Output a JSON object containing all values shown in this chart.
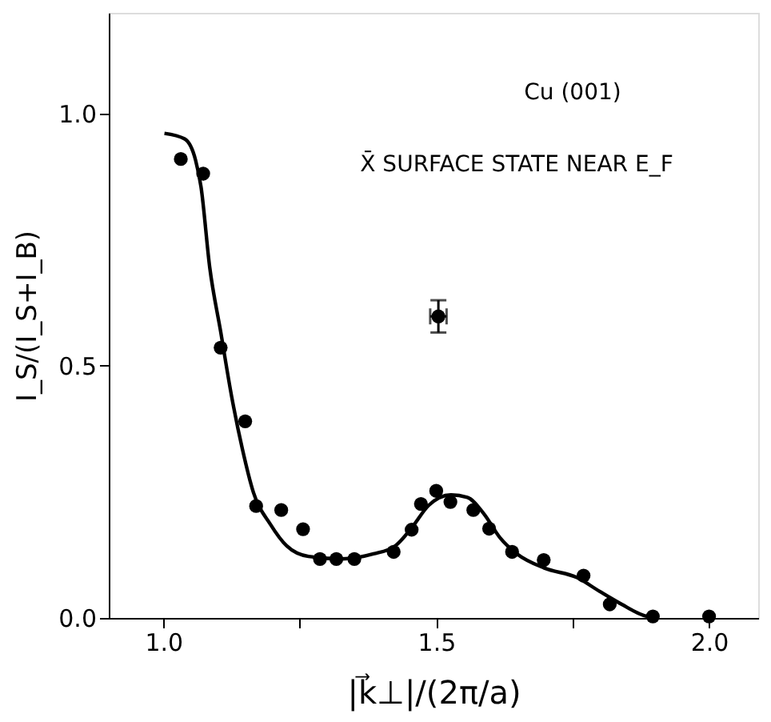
{
  "chart_data": {
    "type": "scatter",
    "xlabel": "|k⃗⊥|/(2π/a)",
    "ylabel": "I_S/(I_S+I_B)",
    "annotations": [
      "Cu (001)",
      "X̄  SURFACE STATE NEAR E_F"
    ],
    "xlim": [
      0.9,
      2.09
    ],
    "ylim": [
      0,
      1.2
    ],
    "xticks": [
      {
        "value": 1.0,
        "label": "1.0"
      },
      {
        "value": 1.25,
        "label": null
      },
      1.5,
      {
        "value": 1.75,
        "label": null
      },
      {
        "value": 2.0,
        "label": "2.0"
      }
    ],
    "yticks": [
      {
        "value": 0,
        "label": "0.0"
      },
      0.5,
      {
        "value": 1.0,
        "label": "1.0"
      }
    ],
    "grid": false,
    "series": [
      {
        "type": "line",
        "color": "#000000",
        "marker": "none",
        "line_style": "solid",
        "x": [
          1.002,
          1.039,
          1.059,
          1.069,
          1.085,
          1.105,
          1.125,
          1.145,
          1.165,
          1.196,
          1.226,
          1.266,
          1.327,
          1.385,
          1.425,
          1.456,
          1.486,
          1.527,
          1.557,
          1.587,
          1.617,
          1.648,
          1.698,
          1.758,
          1.799,
          1.84,
          1.88,
          1.901
        ],
        "values": [
          0.961,
          0.95,
          0.908,
          0.855,
          0.695,
          0.568,
          0.44,
          0.334,
          0.249,
          0.186,
          0.143,
          0.122,
          0.117,
          0.127,
          0.143,
          0.18,
          0.223,
          0.244,
          0.239,
          0.207,
          0.159,
          0.127,
          0.099,
          0.08,
          0.053,
          0.027,
          0.005,
          0.0
        ]
      },
      {
        "type": "scatter",
        "color": "#000000",
        "marker": "circle",
        "x": [
          1.032,
          1.073,
          1.105,
          1.15,
          1.17,
          1.216,
          1.256,
          1.287,
          1.317,
          1.35,
          1.422,
          1.455,
          1.472,
          1.5,
          1.526,
          1.568,
          1.597,
          1.639,
          1.697,
          1.77,
          1.818,
          1.897,
          2.0
        ],
        "values": [
          0.91,
          0.881,
          0.536,
          0.39,
          0.222,
          0.214,
          0.176,
          0.117,
          0.117,
          0.117,
          0.131,
          0.175,
          0.226,
          0.252,
          0.23,
          0.214,
          0.177,
          0.131,
          0.115,
          0.084,
          0.027,
          0.003,
          0.003
        ]
      },
      {
        "color": "#000000",
        "marker": "circle",
        "x": [
          1.504
        ],
        "values": [
          0.598
        ],
        "errors": [
          0.032
        ],
        "xerrors": [
          0.015
        ]
      }
    ]
  }
}
